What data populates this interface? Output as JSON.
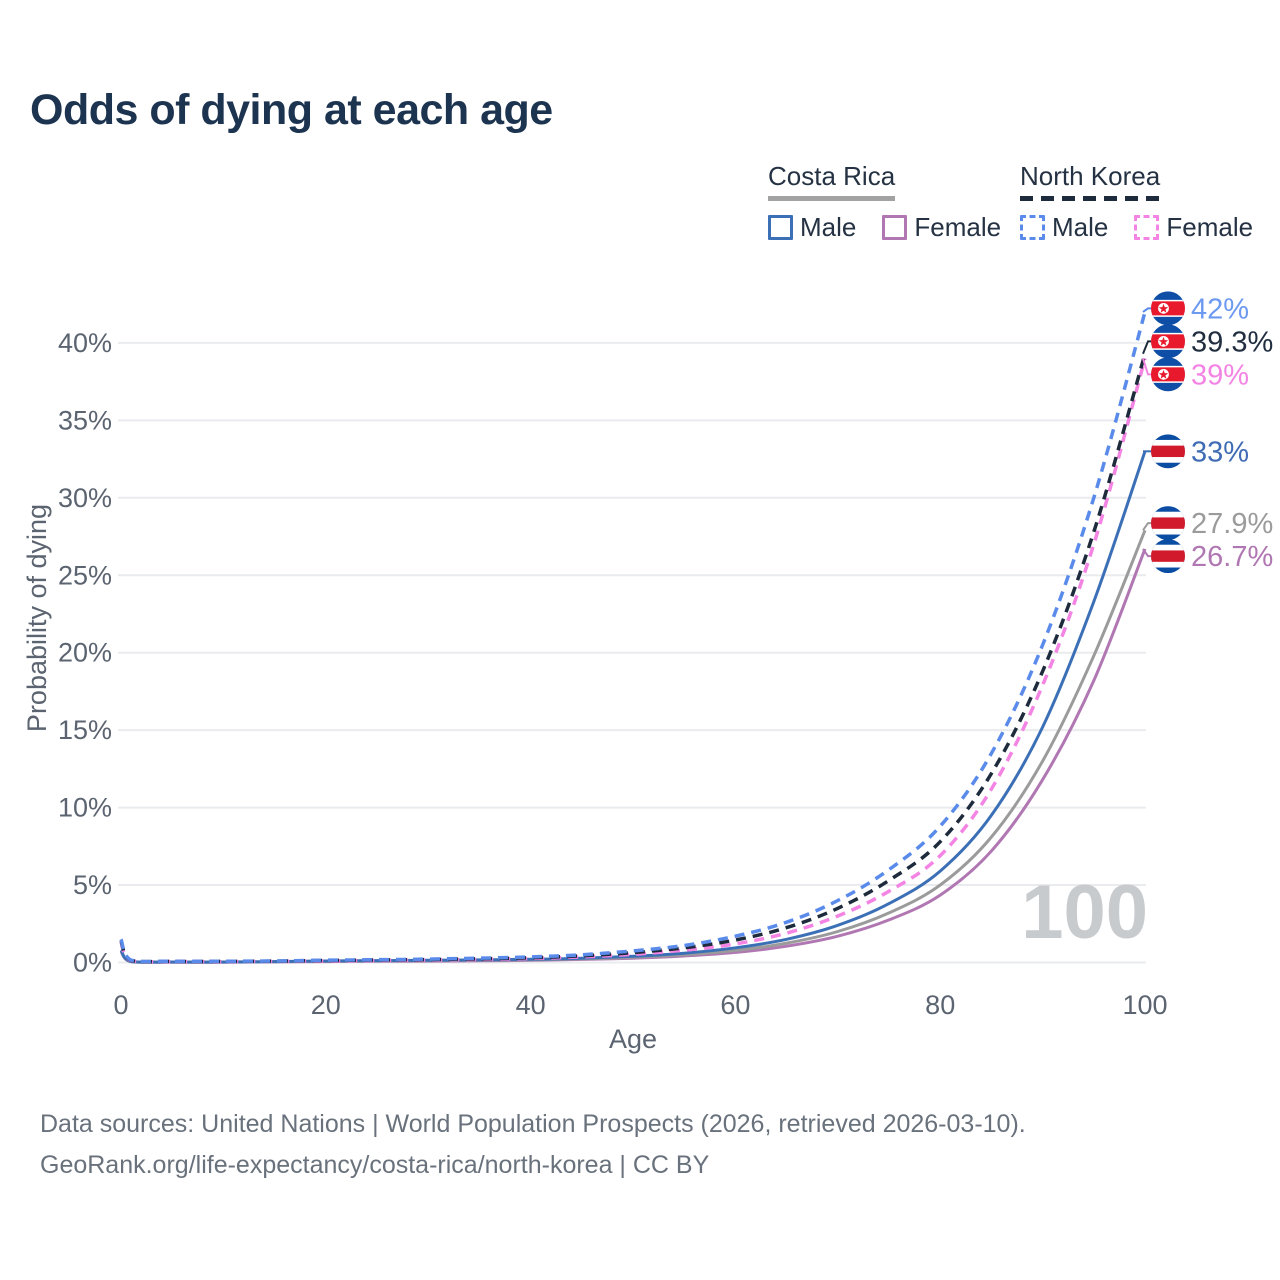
{
  "title": "Odds of dying at each age",
  "legend": {
    "groups": [
      {
        "name": "Costa Rica",
        "line_style": "solid",
        "underline_color": "#a2a2a2",
        "items": [
          {
            "label": "Male",
            "color": "#3c70b6"
          },
          {
            "label": "Female",
            "color": "#b077b2"
          }
        ]
      },
      {
        "name": "North Korea",
        "line_style": "dashed",
        "underline_color": "#1e2b3c",
        "items": [
          {
            "label": "Male",
            "color": "#5a8beb"
          },
          {
            "label": "Female",
            "color": "#f384e4"
          }
        ]
      }
    ]
  },
  "chart_data": {
    "type": "line",
    "title": "Odds of dying at each age",
    "xlabel": "Age",
    "ylabel": "Probability of dying",
    "xlim": [
      0,
      100
    ],
    "ylim": [
      0,
      43
    ],
    "grid": true,
    "legend_position": "top-right",
    "watermark": "100",
    "x_ticks": [
      0,
      20,
      40,
      60,
      80,
      100
    ],
    "y_ticks": [
      0,
      5,
      10,
      15,
      20,
      25,
      30,
      35,
      40
    ],
    "y_tick_suffix": "%",
    "x": [
      0,
      1,
      5,
      10,
      15,
      20,
      25,
      30,
      35,
      40,
      45,
      50,
      55,
      60,
      65,
      70,
      75,
      80,
      85,
      90,
      95,
      100
    ],
    "series": [
      {
        "name": "North Korea Male",
        "country": "north-korea",
        "color": "#5a8beb",
        "dash": true,
        "end_label": "42%",
        "label_color": "#6d9af0",
        "values": [
          1.5,
          0.15,
          0.08,
          0.08,
          0.1,
          0.15,
          0.18,
          0.22,
          0.28,
          0.36,
          0.5,
          0.75,
          1.1,
          1.7,
          2.6,
          4.0,
          6.0,
          8.8,
          13.5,
          20.5,
          30.0,
          42.0
        ]
      },
      {
        "name": "North Korea Both sexes",
        "country": "north-korea",
        "color": "#1e2b3c",
        "dash": true,
        "end_label": "39.3%",
        "label_color": "#202e40",
        "values": [
          1.4,
          0.13,
          0.07,
          0.07,
          0.09,
          0.13,
          0.16,
          0.19,
          0.24,
          0.31,
          0.43,
          0.64,
          0.95,
          1.45,
          2.25,
          3.5,
          5.3,
          7.8,
          12.2,
          18.8,
          27.8,
          39.3
        ]
      },
      {
        "name": "North Korea Female",
        "country": "north-korea",
        "color": "#f384e4",
        "dash": true,
        "end_label": "39%",
        "label_color": "#f384e4",
        "values": [
          1.3,
          0.11,
          0.06,
          0.06,
          0.08,
          0.1,
          0.13,
          0.16,
          0.2,
          0.26,
          0.36,
          0.53,
          0.8,
          1.2,
          1.9,
          3.0,
          4.6,
          6.9,
          11.2,
          17.9,
          27.0,
          39.0
        ]
      },
      {
        "name": "Costa Rica Male",
        "country": "costa-rica",
        "color": "#3c70b6",
        "dash": false,
        "end_label": "33%",
        "label_color": "#3f6cb5",
        "values": [
          0.8,
          0.06,
          0.03,
          0.03,
          0.06,
          0.1,
          0.12,
          0.14,
          0.17,
          0.21,
          0.28,
          0.4,
          0.6,
          0.95,
          1.5,
          2.4,
          3.8,
          5.9,
          9.5,
          15.2,
          23.3,
          33.0
        ]
      },
      {
        "name": "Costa Rica Both sexes",
        "country": "costa-rica",
        "color": "#9b9b9b",
        "dash": false,
        "end_label": "27.9%",
        "label_color": "#9b9b9b",
        "values": [
          0.75,
          0.05,
          0.03,
          0.03,
          0.05,
          0.08,
          0.1,
          0.12,
          0.14,
          0.18,
          0.24,
          0.34,
          0.5,
          0.78,
          1.25,
          2.0,
          3.2,
          5.0,
          8.1,
          13.0,
          19.8,
          27.9
        ]
      },
      {
        "name": "Costa Rica Female",
        "country": "costa-rica",
        "color": "#b077b2",
        "dash": false,
        "end_label": "26.7%",
        "label_color": "#b077b2",
        "values": [
          0.7,
          0.05,
          0.02,
          0.02,
          0.04,
          0.06,
          0.08,
          0.09,
          0.11,
          0.14,
          0.2,
          0.28,
          0.42,
          0.65,
          1.05,
          1.7,
          2.75,
          4.35,
          7.2,
          11.8,
          18.2,
          26.7
        ]
      }
    ]
  },
  "footer": {
    "line1": "Data sources: United Nations | World Population Prospects (2026, retrieved 2026-03-10).",
    "line2": "GeoRank.org/life-expectancy/costa-rica/north-korea | CC BY"
  }
}
